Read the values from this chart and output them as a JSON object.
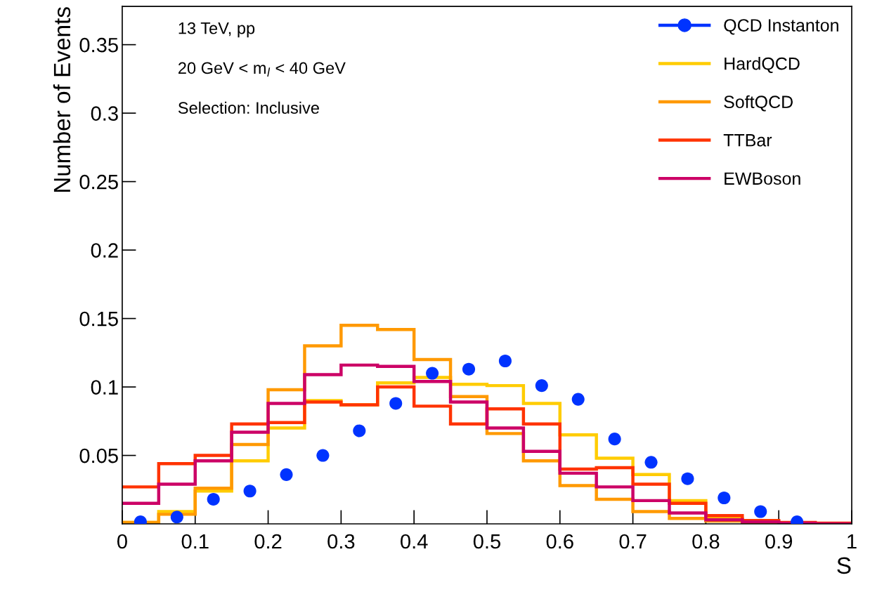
{
  "chart_data": {
    "type": "histogram",
    "xlabel": "S",
    "ylabel": "Number of Events",
    "annotations": [
      "13 TeV, pp",
      "20 GeV < m$_{l}$ < 40 GeV",
      "Selection: Inclusive"
    ],
    "bins": [
      0,
      0.05,
      0.1,
      0.15,
      0.2,
      0.25,
      0.3,
      0.35,
      0.4,
      0.45,
      0.5,
      0.55,
      0.6,
      0.65,
      0.7,
      0.75,
      0.8,
      0.85,
      0.9,
      0.95,
      1
    ],
    "series": [
      {
        "name": "QCD Instanton",
        "type": "scatter",
        "color": "#0033ff",
        "x": [
          0.025,
          0.075,
          0.125,
          0.175,
          0.225,
          0.275,
          0.325,
          0.375,
          0.425,
          0.475,
          0.525,
          0.575,
          0.625,
          0.675,
          0.725,
          0.775,
          0.825,
          0.875,
          0.925
        ],
        "values": [
          0.0015,
          0.005,
          0.018,
          0.024,
          0.036,
          0.05,
          0.068,
          0.088,
          0.11,
          0.113,
          0.119,
          0.101,
          0.091,
          0.062,
          0.045,
          0.033,
          0.019,
          0.009,
          0.0015
        ]
      },
      {
        "name": "HardQCD",
        "color": "#ffcc00",
        "values": [
          0.001,
          0.009,
          0.024,
          0.046,
          0.07,
          0.09,
          0.087,
          0.103,
          0.107,
          0.102,
          0.101,
          0.088,
          0.065,
          0.048,
          0.036,
          0.017,
          0.004,
          0.001,
          0.0005,
          0
        ]
      },
      {
        "name": "SoftQCD",
        "color": "#ff9900",
        "values": [
          0.001,
          0.007,
          0.026,
          0.058,
          0.098,
          0.13,
          0.145,
          0.142,
          0.12,
          0.093,
          0.066,
          0.046,
          0.028,
          0.018,
          0.009,
          0.004,
          0.002,
          0.001,
          0.0005,
          0
        ]
      },
      {
        "name": "TTBar",
        "color": "#ff3300",
        "values": [
          0.027,
          0.044,
          0.05,
          0.073,
          0.074,
          0.089,
          0.087,
          0.1,
          0.086,
          0.073,
          0.084,
          0.073,
          0.04,
          0.041,
          0.029,
          0.015,
          0.006,
          0.0025,
          0.001,
          0.0005
        ]
      },
      {
        "name": "EWBoson",
        "color": "#cc0066",
        "values": [
          0.015,
          0.029,
          0.046,
          0.067,
          0.088,
          0.109,
          0.116,
          0.115,
          0.104,
          0.089,
          0.07,
          0.053,
          0.037,
          0.027,
          0.017,
          0.008,
          0.003,
          0.0015,
          0.0005,
          0
        ]
      }
    ],
    "xlim": [
      0,
      1
    ],
    "ylim": [
      0,
      0.378
    ],
    "xticks": [
      0,
      0.1,
      0.2,
      0.3,
      0.4,
      0.5,
      0.6,
      0.7,
      0.8,
      0.9,
      1
    ],
    "yticks": [
      0.05,
      0.1,
      0.15,
      0.2,
      0.25,
      0.3,
      0.35
    ],
    "grid": false,
    "legend": "top right",
    "marker": "circle"
  }
}
